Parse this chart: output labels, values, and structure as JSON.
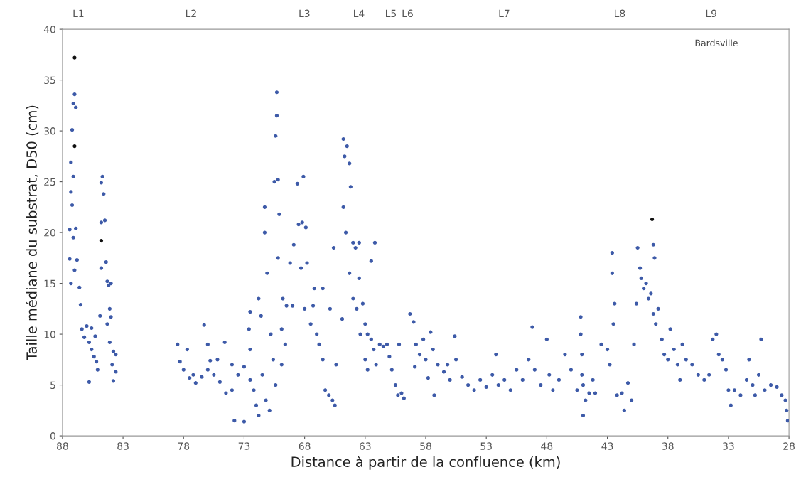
{
  "chart_data": {
    "type": "scatter",
    "xlabel": "Distance à partir de la confluence (km)",
    "ylabel": "Taille médiane du substrat, D50 (cm)",
    "annotations": [
      "Bardsville",
      "L1",
      "L2",
      "L3",
      "L4",
      "L5",
      "L6",
      "L7",
      "L8",
      "L9"
    ],
    "xlim": [
      88,
      28
    ],
    "xticks": [
      88,
      83,
      78,
      73,
      68,
      63,
      58,
      53,
      48,
      43,
      38,
      33,
      28
    ],
    "ylim": [
      0,
      40
    ],
    "yticks": [
      0,
      5,
      10,
      15,
      20,
      25,
      30,
      35,
      40
    ],
    "grid": false,
    "legend": false,
    "marker": "circle",
    "series": [
      {
        "color": "#3d5aa8",
        "x": [
          87.4,
          87.3,
          87.2,
          87.3,
          87.1,
          87.0,
          86.9,
          87.2,
          87.1,
          87.4,
          87.3,
          87.0,
          86.8,
          86.6,
          87.1,
          86.9,
          86.5,
          86.4,
          86.2,
          86.0,
          85.8,
          85.6,
          85.4,
          85.6,
          85.2,
          85.1,
          85.8,
          85.3,
          84.8,
          84.7,
          84.6,
          84.8,
          84.5,
          84.4,
          84.8,
          84.3,
          84.2,
          84.0,
          84.1,
          84.9,
          84.3,
          84.0,
          83.8,
          83.9,
          83.6,
          83.8,
          84.1,
          83.6,
          78.5,
          78.3,
          78.0,
          77.7,
          77.5,
          77.0,
          76.5,
          76.0,
          75.8,
          75.5,
          75.0,
          74.5,
          74.0,
          73.5,
          73.0,
          72.5,
          76.3,
          76.0,
          74.6,
          73.8,
          73.0,
          72.5,
          72.6,
          72.0,
          72.2,
          71.8,
          72.5,
          71.5,
          71.2,
          75.2,
          77.2,
          74.0,
          71.8,
          71.6,
          71.3,
          71.3,
          71.1,
          70.8,
          70.6,
          70.4,
          70.9,
          70.3,
          70.4,
          70.3,
          70.5,
          70.2,
          70.1,
          70.2,
          69.8,
          69.5,
          69.9,
          69.6,
          69.9,
          69.0,
          69.2,
          68.9,
          68.5,
          68.2,
          67.9,
          68.6,
          68.1,
          68.3,
          67.8,
          68.0,
          67.5,
          67.3,
          67.0,
          67.2,
          66.8,
          66.5,
          66.3,
          66.0,
          65.7,
          65.5,
          66.5,
          65.9,
          65.6,
          65.4,
          64.8,
          64.7,
          64.5,
          64.3,
          64.8,
          64.2,
          64.6,
          64.0,
          63.8,
          63.5,
          63.5,
          64.3,
          64.0,
          63.7,
          63.2,
          63.0,
          63.4,
          62.8,
          62.5,
          62.3,
          62.1,
          63.0,
          62.8,
          61.8,
          61.5,
          61.2,
          61.0,
          60.8,
          60.5,
          60.3,
          60.0,
          59.8,
          60.2,
          62.5,
          62.2,
          64.9,
          59.3,
          59.0,
          58.8,
          58.5,
          58.2,
          58.0,
          57.6,
          57.4,
          57.0,
          56.5,
          56.0,
          55.6,
          56.2,
          57.8,
          58.9,
          57.3,
          55.5,
          55.0,
          54.5,
          54.0,
          53.5,
          53.0,
          52.5,
          52.2,
          52.0,
          51.5,
          51.0,
          50.5,
          50.0,
          49.5,
          49.2,
          49.0,
          48.5,
          48.0,
          47.8,
          47.5,
          47.0,
          46.5,
          46.0,
          45.5,
          45.0,
          45.2,
          45.2,
          45.1,
          45.1,
          45.0,
          44.8,
          44.5,
          44.2,
          44.0,
          43.5,
          43.0,
          42.8,
          42.6,
          42.6,
          42.4,
          42.5,
          42.2,
          41.8,
          41.6,
          41.3,
          41.0,
          40.8,
          40.6,
          40.5,
          40.3,
          40.2,
          40.0,
          39.8,
          39.6,
          39.4,
          39.2,
          39.2,
          39.1,
          39.0,
          38.8,
          38.5,
          38.3,
          38.0,
          37.8,
          37.5,
          37.2,
          37.0,
          36.8,
          36.5,
          36.0,
          35.5,
          35.0,
          34.6,
          34.3,
          34.0,
          33.8,
          33.5,
          33.2,
          33.0,
          32.8,
          32.5,
          32.0,
          31.5,
          31.3,
          31.0,
          30.8,
          30.5,
          30.3,
          30.0,
          29.5,
          29.0,
          28.6,
          28.3,
          28.2,
          28.1
        ],
        "values": [
          20.3,
          24,
          30.1,
          26.9,
          32.7,
          33.6,
          32.3,
          22.7,
          19.5,
          17.4,
          15,
          16.3,
          17.3,
          14.6,
          25.5,
          20.4,
          12.9,
          10.5,
          9.7,
          10.8,
          9.2,
          8.5,
          7.8,
          10.6,
          7.3,
          6.5,
          5.3,
          9.8,
          24.9,
          25.5,
          23.8,
          21.0,
          21.2,
          17.1,
          16.5,
          15.2,
          14.8,
          15.0,
          12.5,
          11.8,
          11.0,
          11.7,
          8.3,
          7.0,
          6.3,
          5.4,
          9.2,
          8.0,
          9.0,
          7.3,
          6.5,
          8.5,
          5.7,
          5.2,
          5.8,
          6.5,
          7.4,
          6.0,
          5.3,
          4.2,
          7.0,
          6.0,
          6.8,
          5.5,
          10.9,
          9.0,
          9.2,
          1.5,
          1.4,
          12.2,
          10.5,
          3.0,
          4.5,
          2.0,
          8.5,
          6.0,
          3.5,
          7.5,
          6.0,
          4.5,
          13.5,
          11.8,
          22.5,
          20,
          16,
          10,
          7.5,
          5,
          2.5,
          33.8,
          29.5,
          31.5,
          25,
          25.2,
          21.8,
          17.5,
          13.5,
          12.8,
          10.5,
          9,
          7,
          12.8,
          17.0,
          18.8,
          20.8,
          21.0,
          20.5,
          24.8,
          25.5,
          16.5,
          17.0,
          12.5,
          11.0,
          12.8,
          10.0,
          14.5,
          9.0,
          7.5,
          4.5,
          4.0,
          3.5,
          3.0,
          14.5,
          12.5,
          18.5,
          7.0,
          29.2,
          27.5,
          28.5,
          26.8,
          22.5,
          24.5,
          20.0,
          19.0,
          18.5,
          19.0,
          15.5,
          16.0,
          13.5,
          12.5,
          13.0,
          11.0,
          10.0,
          10.0,
          9.5,
          8.5,
          7.0,
          7.5,
          6.5,
          9.0,
          8.8,
          9.0,
          7.8,
          6.5,
          5.0,
          4.0,
          4.2,
          3.7,
          9.0,
          17.2,
          19.0,
          11.5,
          12.0,
          11.2,
          9.0,
          8.0,
          9.5,
          7.5,
          10.2,
          8.5,
          7.0,
          6.3,
          5.5,
          9.8,
          7.0,
          5.7,
          6.8,
          4.0,
          7.5,
          5.8,
          5.0,
          4.5,
          5.5,
          4.8,
          6.0,
          8.0,
          5.0,
          5.5,
          4.5,
          6.5,
          5.5,
          7.5,
          10.7,
          6.5,
          5.0,
          9.5,
          6.0,
          4.5,
          5.5,
          8.0,
          6.5,
          4.5,
          5.0,
          11.7,
          10.0,
          8.0,
          6.0,
          2.0,
          3.5,
          4.2,
          5.5,
          4.2,
          9.0,
          8.5,
          7.0,
          18.0,
          16.0,
          13.0,
          11.0,
          4.0,
          4.2,
          2.5,
          5.2,
          3.5,
          9.0,
          13.0,
          18.5,
          16.5,
          15.5,
          14.5,
          15.0,
          13.5,
          14.0,
          12.0,
          18.8,
          17.5,
          11.0,
          12.5,
          9.5,
          8.0,
          7.5,
          10.5,
          8.5,
          7.0,
          5.5,
          9.0,
          7.5,
          7.0,
          6.0,
          5.5,
          6.0,
          9.5,
          10.0,
          8.0,
          7.5,
          6.5,
          4.5,
          3.0,
          4.5,
          4.0,
          5.5,
          7.5,
          5.0,
          4.0,
          6.0,
          9.5,
          4.5,
          5.0,
          4.8,
          4.0,
          3.5,
          2.5,
          1.5
        ]
      },
      {
        "color": "#111111",
        "x": [
          87.0,
          87.0,
          84.8,
          39.3
        ],
        "values": [
          37.2,
          28.5,
          19.2,
          21.3
        ]
      }
    ]
  }
}
